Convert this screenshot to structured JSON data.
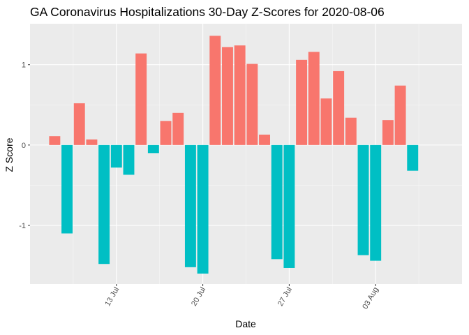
{
  "chart_data": {
    "type": "bar",
    "title": "GA Coronavirus Hospitalizations 30-Day Z-Scores for 2020-08-06",
    "xlabel": "Date",
    "ylabel": "Z Score",
    "x_tick_labels": [
      {
        "label": "13 Jul",
        "date": "2020-07-13"
      },
      {
        "label": "20 Jul",
        "date": "2020-07-20"
      },
      {
        "label": "27 Jul",
        "date": "2020-07-27"
      },
      {
        "label": "03 Aug",
        "date": "2020-08-03"
      }
    ],
    "y_tick_labels": [
      {
        "label": "-1",
        "value": -1
      },
      {
        "label": "0",
        "value": 0
      },
      {
        "label": "1",
        "value": 1
      }
    ],
    "ylim": [
      -1.73,
      1.51
    ],
    "xlim": [
      "2020-07-06",
      "2020-08-10"
    ],
    "grid": true,
    "legend": "none",
    "colors": {
      "positive": "#F8766D",
      "negative": "#00BFC4",
      "panel": "#EBEBEB",
      "grid_major": "#FFFFFF",
      "grid_minor": "#F7F7F7"
    },
    "x": [
      "2020-07-08",
      "2020-07-09",
      "2020-07-10",
      "2020-07-11",
      "2020-07-12",
      "2020-07-13",
      "2020-07-14",
      "2020-07-15",
      "2020-07-16",
      "2020-07-17",
      "2020-07-18",
      "2020-07-19",
      "2020-07-20",
      "2020-07-21",
      "2020-07-22",
      "2020-07-23",
      "2020-07-24",
      "2020-07-25",
      "2020-07-26",
      "2020-07-27",
      "2020-07-28",
      "2020-07-29",
      "2020-07-30",
      "2020-07-31",
      "2020-08-01",
      "2020-08-02",
      "2020-08-03",
      "2020-08-04",
      "2020-08-05",
      "2020-08-06"
    ],
    "values": [
      0.11,
      -1.1,
      0.52,
      0.07,
      -1.48,
      -0.28,
      -0.37,
      1.14,
      -0.1,
      0.3,
      0.4,
      -1.52,
      -1.6,
      1.36,
      1.22,
      1.24,
      1.01,
      0.13,
      -1.42,
      -1.53,
      1.06,
      1.16,
      0.58,
      0.92,
      0.34,
      -1.37,
      -1.44,
      0.31,
      0.74,
      -0.32
    ]
  }
}
